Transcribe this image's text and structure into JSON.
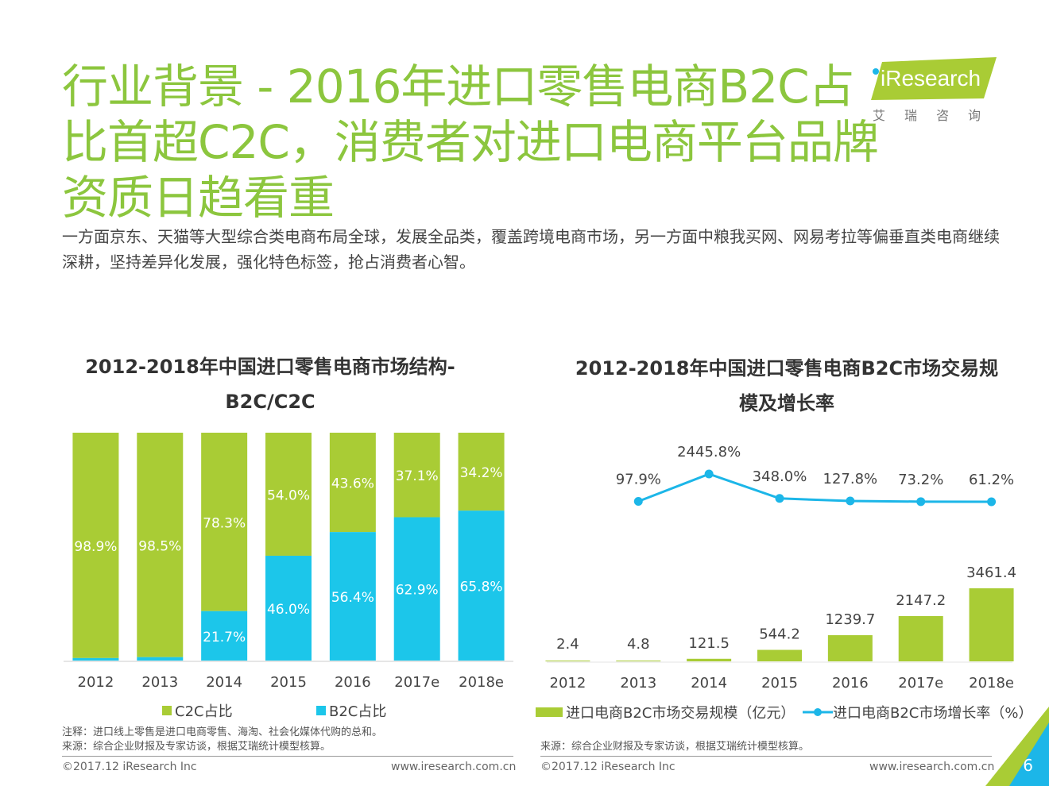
{
  "title": "行业背景 - 2016年进口零售电商B2C占比首超C2C，消费者对进口电商平台品牌资质日趋看重",
  "logo": {
    "brand": "iResearch",
    "cn": "艾瑞咨询"
  },
  "subtitle": "一方面京东、天猫等大型综合类电商布局全球，发展全品类，覆盖跨境电商市场，另一方面中粮我买网、网易考拉等偏垂直类电商继续深耕，坚持差异化发展，强化特色标签，抢占消费者心智。",
  "chart1": {
    "title": "2012-2018年中国进口零售电商市场结构-B2C/C2C"
  },
  "chart2": {
    "title": "2012-2018年中国进口零售电商B2C市场交易规模及增长率"
  },
  "colors": {
    "green": "#a9cc35",
    "blue": "#1cc6ea",
    "line": "#1cb6e8",
    "title_green": "#8cc63e"
  },
  "chart_data": [
    {
      "type": "bar",
      "stacked": true,
      "percent": true,
      "title": "2012-2018年中国进口零售电商市场结构-B2C/C2C",
      "categories": [
        "2012",
        "2013",
        "2014",
        "2015",
        "2016",
        "2017e",
        "2018e"
      ],
      "series": [
        {
          "name": "C2C占比",
          "values": [
            98.9,
            98.5,
            78.3,
            54.0,
            43.6,
            37.1,
            34.2
          ],
          "labels": [
            "98.9%",
            "98.5%",
            "78.3%",
            "54.0%",
            "43.6%",
            "37.1%",
            "34.2%"
          ],
          "color": "#a9cc35"
        },
        {
          "name": "B2C占比",
          "values": [
            1.1,
            1.5,
            21.7,
            46.0,
            56.4,
            62.9,
            65.8
          ],
          "labels": [
            "",
            "",
            "21.7%",
            "46.0%",
            "56.4%",
            "62.9%",
            "65.8%"
          ],
          "color": "#1cc6ea"
        }
      ],
      "ylim": [
        0,
        100
      ],
      "legend": "bottom"
    },
    {
      "type": "bar+line",
      "title": "2012-2018年中国进口零售电商B2C市场交易规模及增长率",
      "categories": [
        "2012",
        "2013",
        "2014",
        "2015",
        "2016",
        "2017e",
        "2018e"
      ],
      "bars": {
        "name": "进口电商B2C市场交易规模（亿元）",
        "values": [
          2.4,
          4.8,
          121.5,
          544.2,
          1239.7,
          2147.2,
          3461.4
        ],
        "labels": [
          "2.4",
          "4.8",
          "121.5",
          "544.2",
          "1239.7",
          "2147.2",
          "3461.4"
        ],
        "color": "#a9cc35"
      },
      "line": {
        "name": "进口电商B2C市场增长率（%）",
        "values": [
          null,
          97.9,
          2445.8,
          348.0,
          127.8,
          73.2,
          61.2
        ],
        "labels": [
          "",
          "97.9%",
          "2445.8%",
          "348.0%",
          "127.8%",
          "73.2%",
          "61.2%"
        ],
        "color": "#1cb6e8"
      },
      "legend": "bottom"
    }
  ],
  "legend1": {
    "c2c": "C2C占比",
    "b2c": "B2C占比"
  },
  "legend2": {
    "bars": "进口电商B2C市场交易规模（亿元）",
    "line": "进口电商B2C市场增长率（%）"
  },
  "note_left": "注释：进口线上零售是进口电商零售、海淘、社会化媒体代购的总和。",
  "source_left": "来源：综合企业财报及专家访谈，根据艾瑞统计模型核算。",
  "source_right": "来源：综合企业财报及专家访谈，根据艾瑞统计模型核算。",
  "footer": {
    "copyright_left": "©2017.12 iResearch Inc",
    "url_left": "www.iresearch.com.cn",
    "copyright_right": "©2017.12 iResearch Inc",
    "url_right": "www.iresearch.com.cn",
    "page": "6"
  }
}
